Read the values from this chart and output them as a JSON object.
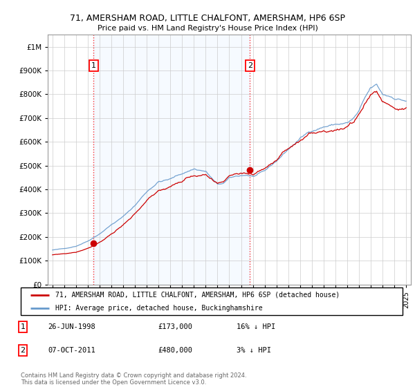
{
  "title": "71, AMERSHAM ROAD, LITTLE CHALFONT, AMERSHAM, HP6 6SP",
  "subtitle": "Price paid vs. HM Land Registry's House Price Index (HPI)",
  "legend_property": "71, AMERSHAM ROAD, LITTLE CHALFONT, AMERSHAM, HP6 6SP (detached house)",
  "legend_hpi": "HPI: Average price, detached house, Buckinghamshire",
  "sale1_label": "1",
  "sale1_date": "26-JUN-1998",
  "sale1_price": "£173,000",
  "sale1_hpi": "16% ↓ HPI",
  "sale2_label": "2",
  "sale2_date": "07-OCT-2011",
  "sale2_price": "£480,000",
  "sale2_hpi": "3% ↓ HPI",
  "footer": "Contains HM Land Registry data © Crown copyright and database right 2024.\nThis data is licensed under the Open Government Licence v3.0.",
  "property_color": "#cc0000",
  "hpi_color": "#6699cc",
  "shade_color": "#ddeeff",
  "sale1_year": 1998.5,
  "sale2_year": 2011.75,
  "prop_sale1_value": 173000,
  "prop_sale2_value": 480000,
  "ylim_min": 0,
  "ylim_max": 1050000,
  "background_color": "#ffffff",
  "grid_color": "#cccccc"
}
